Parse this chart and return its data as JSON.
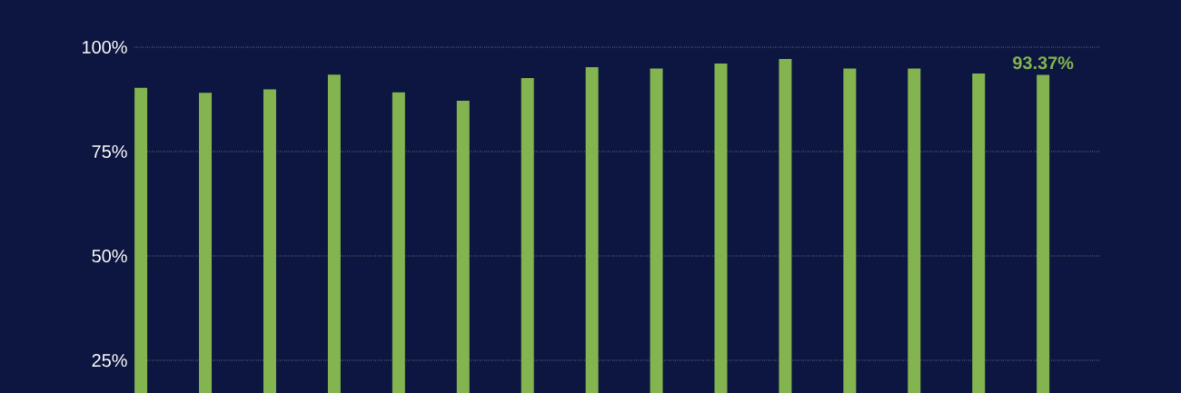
{
  "chart_data": {
    "type": "bar",
    "categories": [
      null,
      null,
      null,
      null,
      null,
      null,
      null,
      null,
      null,
      null,
      null,
      null,
      null,
      null,
      null
    ],
    "values": [
      90.3,
      89.1,
      89.9,
      93.4,
      89.2,
      87.2,
      92.6,
      95.2,
      94.9,
      96.1,
      97.2,
      94.9,
      94.9,
      93.7,
      93.37
    ],
    "value_labels": [
      null,
      null,
      null,
      null,
      null,
      null,
      null,
      null,
      null,
      null,
      null,
      null,
      null,
      null,
      "93.37%"
    ],
    "color": "#84b450",
    "ylim": [
      17.2,
      100
    ],
    "yticks": [
      {
        "value": 25,
        "label": "25%"
      },
      {
        "value": 50,
        "label": "50%"
      },
      {
        "value": 75,
        "label": "75%"
      },
      {
        "value": 100,
        "label": "100%"
      }
    ],
    "grid": "y",
    "tick_labels": "y"
  }
}
